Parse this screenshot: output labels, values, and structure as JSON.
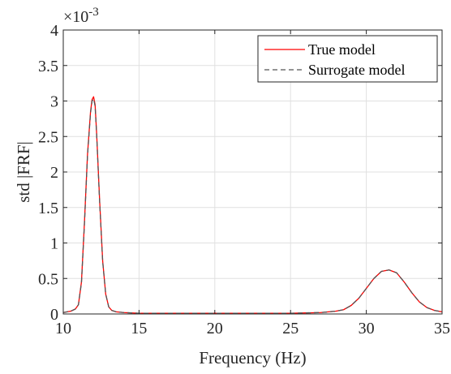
{
  "chart_data": {
    "type": "line",
    "title": "",
    "xlabel": "Frequency (Hz)",
    "ylabel": "std |FRF|",
    "y_exponent_base": "×10",
    "y_exponent_power": "-3",
    "xlim": [
      10,
      35
    ],
    "ylim": [
      0,
      4
    ],
    "xticks": [
      10,
      15,
      20,
      25,
      30,
      35
    ],
    "yticks": [
      0,
      0.5,
      1,
      1.5,
      2,
      2.5,
      3,
      3.5,
      4
    ],
    "ytick_labels": [
      "0",
      "0.5",
      "1",
      "1.5",
      "2",
      "2.5",
      "3",
      "3.5",
      "4"
    ],
    "grid": true,
    "legend_position": "top-right",
    "series": [
      {
        "name": "True model",
        "color": "#ff0000",
        "dash": "solid",
        "x": [
          10.0,
          10.5,
          10.8,
          11.0,
          11.2,
          11.4,
          11.6,
          11.8,
          11.9,
          12.0,
          12.1,
          12.2,
          12.4,
          12.6,
          12.8,
          13.0,
          13.2,
          13.5,
          14.0,
          15.0,
          20.0,
          25.0,
          27.0,
          28.0,
          28.5,
          29.0,
          29.5,
          30.0,
          30.5,
          31.0,
          31.5,
          32.0,
          32.5,
          33.0,
          33.5,
          34.0,
          34.5,
          35.0
        ],
        "y": [
          0.02,
          0.04,
          0.07,
          0.13,
          0.45,
          1.3,
          2.25,
          2.85,
          3.02,
          3.06,
          2.95,
          2.55,
          1.6,
          0.75,
          0.28,
          0.1,
          0.05,
          0.03,
          0.02,
          0.01,
          0.01,
          0.01,
          0.02,
          0.04,
          0.06,
          0.12,
          0.22,
          0.36,
          0.5,
          0.6,
          0.62,
          0.58,
          0.45,
          0.3,
          0.17,
          0.09,
          0.05,
          0.03
        ]
      },
      {
        "name": "Surrogate model",
        "color": "#555555",
        "dash": "dashed",
        "x": [
          10.0,
          10.5,
          10.8,
          11.0,
          11.2,
          11.4,
          11.6,
          11.8,
          11.9,
          12.0,
          12.1,
          12.2,
          12.4,
          12.6,
          12.8,
          13.0,
          13.2,
          13.5,
          14.0,
          15.0,
          20.0,
          25.0,
          27.0,
          28.0,
          28.5,
          29.0,
          29.5,
          30.0,
          30.5,
          31.0,
          31.5,
          32.0,
          32.5,
          33.0,
          33.5,
          34.0,
          34.5,
          35.0
        ],
        "y": [
          0.02,
          0.04,
          0.07,
          0.13,
          0.44,
          1.28,
          2.23,
          2.83,
          3.0,
          3.03,
          2.93,
          2.53,
          1.58,
          0.74,
          0.28,
          0.1,
          0.05,
          0.03,
          0.02,
          0.01,
          0.01,
          0.01,
          0.02,
          0.04,
          0.06,
          0.12,
          0.22,
          0.36,
          0.5,
          0.6,
          0.62,
          0.58,
          0.45,
          0.3,
          0.17,
          0.09,
          0.05,
          0.03
        ]
      }
    ]
  }
}
